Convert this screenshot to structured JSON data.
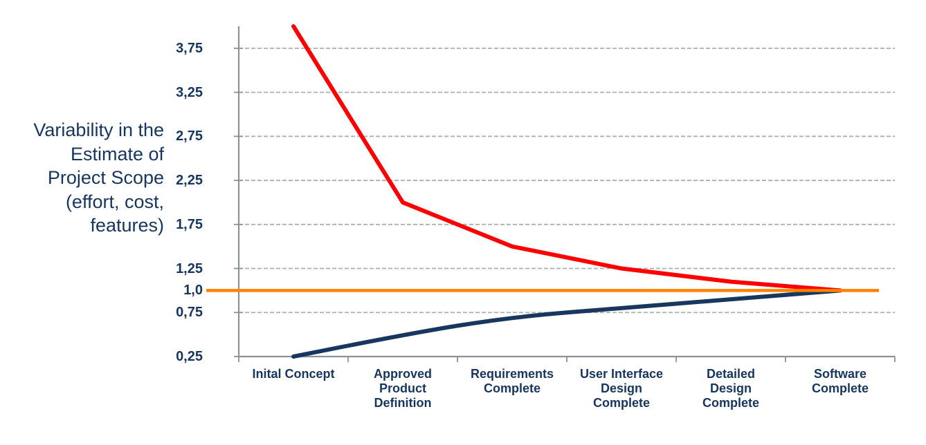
{
  "side_label": {
    "text": "Variability in the Estimate of Project Scope (effort, cost, features)",
    "lines": [
      "Variability in the",
      "Estimate of",
      "Project Scope",
      "(effort, cost,",
      "features)"
    ]
  },
  "chart_data": {
    "type": "line",
    "title": "",
    "xlabel": "",
    "ylabel": "Variability in the Estimate of Project Scope (effort, cost, features)",
    "ylim": [
      0.25,
      4.0
    ],
    "grid": "horizontal-dashed",
    "legend": "none",
    "categories": [
      "Inital Concept",
      "Approved Product Definition",
      "Requirements Complete",
      "User Interface Design Complete",
      "Detailed Design Complete",
      "Software Complete"
    ],
    "category_lines": [
      [
        "Inital Concept"
      ],
      [
        "Approved",
        "Product",
        "Definition"
      ],
      [
        "Requirements",
        "Complete"
      ],
      [
        "User Interface",
        "Design",
        "Complete"
      ],
      [
        "Detailed",
        "Design",
        "Complete"
      ],
      [
        "Software",
        "Complete"
      ]
    ],
    "yticks": [
      {
        "label": "3,75",
        "value": 3.75,
        "grid": true
      },
      {
        "label": "3,25",
        "value": 3.25,
        "grid": true
      },
      {
        "label": "2,75",
        "value": 2.75,
        "grid": true
      },
      {
        "label": "2,25",
        "value": 2.25,
        "grid": true
      },
      {
        "label": "1,75",
        "value": 1.75,
        "grid": true
      },
      {
        "label": "1,25",
        "value": 1.25,
        "grid": true
      },
      {
        "label": "1,0",
        "value": 1.0,
        "grid": false
      },
      {
        "label": "0,75",
        "value": 0.75,
        "grid": true
      },
      {
        "label": "0,25",
        "value": 0.25,
        "grid": false
      }
    ],
    "series": [
      {
        "name": "upper-estimate-bound",
        "color": "#FE0000",
        "width": 6,
        "smooth": false,
        "full_width": false,
        "values": [
          4.0,
          2.0,
          1.5,
          1.25,
          1.1,
          1.0
        ]
      },
      {
        "name": "lower-estimate-bound",
        "color": "#17375E",
        "width": 6,
        "smooth": true,
        "full_width": false,
        "values": [
          0.25,
          0.5,
          0.7,
          0.8,
          0.9,
          1.0
        ]
      },
      {
        "name": "final-value-baseline",
        "color": "#FF8200",
        "width": 4.5,
        "smooth": false,
        "full_width": true,
        "values": [
          1.0,
          1.0,
          1.0,
          1.0,
          1.0,
          1.0
        ]
      }
    ]
  },
  "colors": {
    "background": "#FFFFFF",
    "text": "#17365D",
    "axis": "#8C9196",
    "gridline": "#ACB0B4"
  }
}
